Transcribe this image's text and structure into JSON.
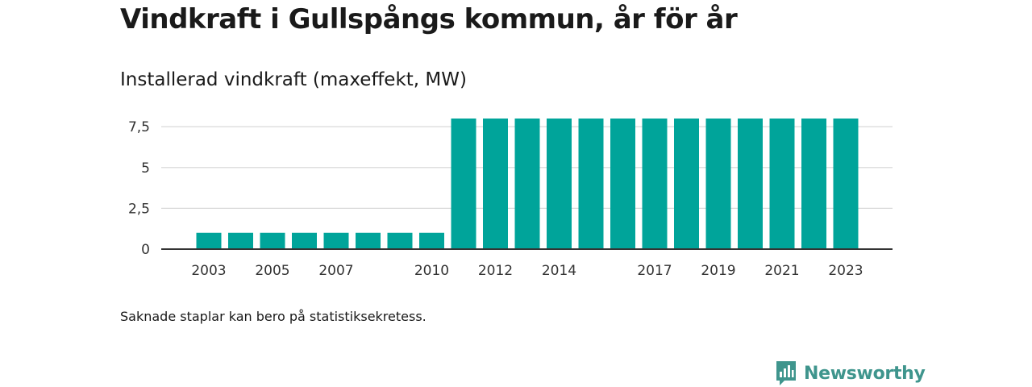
{
  "header": {
    "title": "Vindkraft i Gullspångs kommun, år för år",
    "subtitle": "Installerad vindkraft (maxeffekt, MW)"
  },
  "footer": {
    "note": "Saknade staplar kan bero på statistiksekretess.",
    "brand": "Newsworthy"
  },
  "colors": {
    "bar": "#00a49a",
    "grid": "#d9d9d9",
    "axis": "#333333",
    "brand": "#3f958d"
  },
  "chart_data": {
    "type": "bar",
    "categories": [
      "2003",
      "2004",
      "2005",
      "2006",
      "2007",
      "2008",
      "2009",
      "2010",
      "2011",
      "2012",
      "2013",
      "2014",
      "2015",
      "2016",
      "2017",
      "2018",
      "2019",
      "2020",
      "2021",
      "2022",
      "2023"
    ],
    "values": [
      1,
      1,
      1,
      1,
      1,
      1,
      1,
      1,
      8,
      8,
      8,
      8,
      8,
      8,
      8,
      8,
      8,
      8,
      8,
      8,
      8
    ],
    "x_tick_labels": [
      "2003",
      "2005",
      "2007",
      "2010",
      "2012",
      "2014",
      "2017",
      "2019",
      "2021",
      "2023"
    ],
    "y_ticks": [
      0,
      2.5,
      5,
      7.5
    ],
    "y_tick_labels": [
      "0",
      "2,5",
      "5",
      "7,5"
    ],
    "ylim": [
      0,
      8
    ],
    "grid": true,
    "legend": "none"
  }
}
